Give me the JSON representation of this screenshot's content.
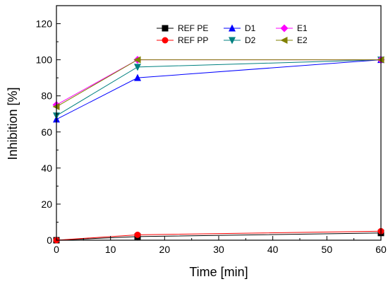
{
  "chart_data": {
    "type": "line",
    "title": "",
    "xlabel": "Time [min]",
    "ylabel": "Inhibition [%]",
    "xlim": [
      0,
      60
    ],
    "ylim": [
      0,
      130
    ],
    "xticks": [
      0,
      10,
      20,
      30,
      40,
      50,
      60
    ],
    "yticks": [
      0,
      20,
      40,
      60,
      80,
      100,
      120
    ],
    "grid": false,
    "legend_position": "top-center",
    "x": [
      0,
      15,
      60
    ],
    "series": [
      {
        "name": "REF PE",
        "values": [
          0,
          2,
          4
        ],
        "color": "#000000",
        "marker": "square"
      },
      {
        "name": "REF PP",
        "values": [
          0,
          3,
          5
        ],
        "color": "#ff0000",
        "marker": "circle"
      },
      {
        "name": "D1",
        "values": [
          67,
          90,
          100
        ],
        "color": "#0000ff",
        "marker": "triangle-up"
      },
      {
        "name": "D2",
        "values": [
          69,
          96,
          100
        ],
        "color": "#008080",
        "marker": "triangle-down"
      },
      {
        "name": "E1",
        "values": [
          75,
          100,
          100
        ],
        "color": "#ff00ff",
        "marker": "diamond"
      },
      {
        "name": "E2",
        "values": [
          74,
          100,
          100
        ],
        "color": "#808000",
        "marker": "triangle-left"
      }
    ]
  }
}
